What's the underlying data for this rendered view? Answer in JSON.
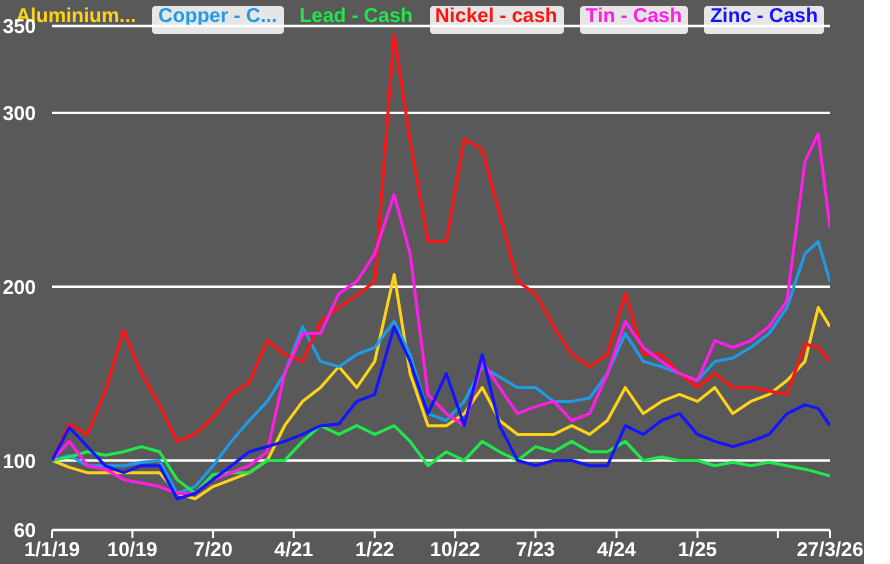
{
  "chart_data": {
    "type": "line",
    "x": [
      "2019-01-01",
      "2019-03-01",
      "2019-05-01",
      "2019-07-01",
      "2019-09-01",
      "2019-11-01",
      "2020-01-01",
      "2020-03-01",
      "2020-05-01",
      "2020-07-01",
      "2020-09-01",
      "2020-11-01",
      "2021-01-01",
      "2021-03-01",
      "2021-05-01",
      "2021-07-01",
      "2021-09-01",
      "2021-11-01",
      "2022-01-01",
      "2022-03-08",
      "2022-05-01",
      "2022-07-01",
      "2022-09-01",
      "2022-11-01",
      "2023-01-01",
      "2023-03-01",
      "2023-05-01",
      "2023-07-01",
      "2023-09-01",
      "2023-11-01",
      "2024-01-01",
      "2024-03-01",
      "2024-05-01",
      "2024-07-01",
      "2024-09-01",
      "2024-11-01",
      "2025-01-01",
      "2025-03-01",
      "2025-05-01",
      "2025-07-01",
      "2025-09-01",
      "2025-11-01",
      "2026-01-01",
      "2026-02-15",
      "2026-03-27"
    ],
    "series": [
      {
        "name": "Aluminium...",
        "color": "#ffd21a",
        "values": [
          100,
          96,
          93,
          93,
          93,
          93,
          93,
          81,
          78,
          85,
          89,
          93,
          100,
          120,
          134,
          142,
          154,
          142,
          157,
          207,
          150,
          120,
          120,
          127,
          142,
          123,
          115,
          115,
          115,
          120,
          115,
          123,
          142,
          127,
          134,
          138,
          134,
          142,
          127,
          134,
          138,
          146,
          157,
          188,
          177
        ]
      },
      {
        "name": "Copper - C...",
        "color": "#1e9be6",
        "values": [
          100,
          103,
          97,
          97,
          97,
          99,
          100,
          81,
          85,
          97,
          111,
          123,
          134,
          150,
          177,
          157,
          154,
          161,
          165,
          180,
          161,
          127,
          123,
          134,
          154,
          148,
          142,
          142,
          134,
          134,
          136,
          150,
          173,
          157,
          154,
          150,
          146,
          157,
          159,
          165,
          173,
          188,
          219,
          226,
          203
        ]
      },
      {
        "name": "Lead - Cash",
        "color": "#1ee84a",
        "values": [
          100,
          102,
          105,
          103,
          105,
          108,
          105,
          89,
          81,
          92,
          93,
          93,
          100,
          100,
          111,
          120,
          115,
          120,
          115,
          120,
          111,
          97,
          105,
          100,
          111,
          105,
          100,
          108,
          105,
          111,
          105,
          105,
          111,
          100,
          102,
          100,
          100,
          97,
          99,
          97,
          99,
          97,
          95,
          93,
          91
        ]
      },
      {
        "name": "Nickel - cash",
        "color": "#ff1414",
        "values": [
          100,
          121,
          115,
          140,
          175,
          150,
          132,
          111,
          115,
          125,
          138,
          145,
          169,
          161,
          157,
          180,
          188,
          195,
          203,
          345,
          284,
          226,
          226,
          285,
          279,
          242,
          203,
          196,
          177,
          161,
          154,
          161,
          196,
          161,
          161,
          150,
          142,
          150,
          142,
          142,
          140,
          138,
          167,
          165,
          157
        ]
      },
      {
        "name": "Tin - Cash",
        "color": "#ff1ee8",
        "values": [
          100,
          111,
          97,
          95,
          89,
          87,
          85,
          81,
          81,
          89,
          93,
          97,
          105,
          150,
          173,
          173,
          196,
          203,
          219,
          253,
          219,
          138,
          127,
          120,
          157,
          142,
          127,
          131,
          134,
          123,
          127,
          150,
          180,
          165,
          157,
          150,
          146,
          169,
          165,
          169,
          177,
          192,
          272,
          288,
          234
        ]
      },
      {
        "name": "Zinc - Cash",
        "color": "#1414ff",
        "values": [
          100,
          119,
          108,
          97,
          93,
          97,
          97,
          78,
          81,
          89,
          97,
          105,
          108,
          111,
          115,
          120,
          121,
          134,
          138,
          177,
          157,
          127,
          150,
          120,
          161,
          120,
          100,
          97,
          100,
          100,
          97,
          97,
          120,
          115,
          123,
          127,
          115,
          111,
          108,
          111,
          115,
          127,
          132,
          130,
          120
        ]
      }
    ],
    "xlim": [
      "2019-01-01",
      "2026-03-27"
    ],
    "xticks": [
      {
        "value": "2019-01-01",
        "label": "1/1/19"
      },
      {
        "value": "2019-10-01",
        "label": "10/19"
      },
      {
        "value": "2020-07-01",
        "label": "7/20"
      },
      {
        "value": "2021-04-01",
        "label": "4/21"
      },
      {
        "value": "2022-01-01",
        "label": "1/22"
      },
      {
        "value": "2022-10-01",
        "label": "10/22"
      },
      {
        "value": "2023-07-01",
        "label": "7/23"
      },
      {
        "value": "2024-04-01",
        "label": "4/24"
      },
      {
        "value": "2025-01-01",
        "label": "1/25"
      },
      {
        "value": "2025-10-01",
        "label": null
      },
      {
        "value": "2026-03-27",
        "label": "27/3/26"
      }
    ],
    "ylim": [
      60,
      350
    ],
    "yticks": [
      60,
      100,
      200,
      300,
      350
    ],
    "grid": "y",
    "legend": "top",
    "marker": "none",
    "line_style": "solid"
  }
}
